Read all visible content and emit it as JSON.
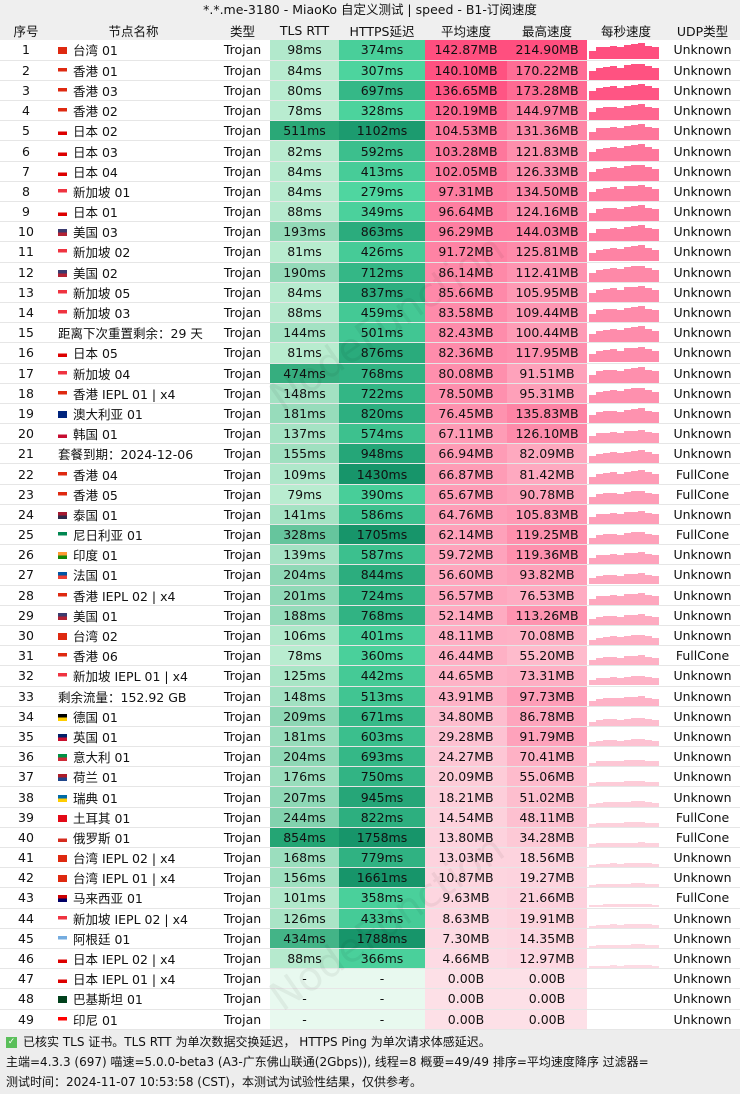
{
  "window": {
    "title": "*.*.me-3180 - MiaoKo 自定义测试 | speed - B1-订阅速度"
  },
  "columns": [
    "序号",
    "节点名称",
    "类型",
    "TLS RTT",
    "HTTPS延迟",
    "平均速度",
    "最高速度",
    "每秒速度",
    "UDP类型"
  ],
  "colors": {
    "tls_low": "#b9ecd0",
    "tls_high": "#24a574",
    "https_low": "#4fd6a0",
    "https_high": "#17956a",
    "speed_high": "#ff4f7f",
    "speed_low": "#fde0e7",
    "empty_latency": "#e8f9ef"
  },
  "rows": [
    [
      1,
      "TW",
      "台湾 01",
      "Trojan",
      "98ms",
      "374ms",
      "142.87MB",
      "214.90MB",
      "Unknown"
    ],
    [
      2,
      "HK",
      "香港 01",
      "Trojan",
      "84ms",
      "307ms",
      "140.10MB",
      "170.22MB",
      "Unknown"
    ],
    [
      3,
      "HK",
      "香港 03",
      "Trojan",
      "80ms",
      "697ms",
      "136.65MB",
      "173.28MB",
      "Unknown"
    ],
    [
      4,
      "HK",
      "香港 02",
      "Trojan",
      "78ms",
      "328ms",
      "120.19MB",
      "144.97MB",
      "Unknown"
    ],
    [
      5,
      "JP",
      "日本 02",
      "Trojan",
      "511ms",
      "1102ms",
      "104.53MB",
      "131.36MB",
      "Unknown"
    ],
    [
      6,
      "JP",
      "日本 03",
      "Trojan",
      "82ms",
      "592ms",
      "103.28MB",
      "121.83MB",
      "Unknown"
    ],
    [
      7,
      "JP",
      "日本 04",
      "Trojan",
      "84ms",
      "413ms",
      "102.05MB",
      "126.33MB",
      "Unknown"
    ],
    [
      8,
      "SG",
      "新加坡 01",
      "Trojan",
      "84ms",
      "279ms",
      "97.31MB",
      "134.50MB",
      "Unknown"
    ],
    [
      9,
      "JP",
      "日本 01",
      "Trojan",
      "88ms",
      "349ms",
      "96.64MB",
      "124.16MB",
      "Unknown"
    ],
    [
      10,
      "US",
      "美国 03",
      "Trojan",
      "193ms",
      "863ms",
      "96.29MB",
      "144.03MB",
      "Unknown"
    ],
    [
      11,
      "SG",
      "新加坡 02",
      "Trojan",
      "81ms",
      "426ms",
      "91.72MB",
      "125.81MB",
      "Unknown"
    ],
    [
      12,
      "US",
      "美国 02",
      "Trojan",
      "190ms",
      "712ms",
      "86.14MB",
      "112.41MB",
      "Unknown"
    ],
    [
      13,
      "SG",
      "新加坡 05",
      "Trojan",
      "84ms",
      "837ms",
      "85.66MB",
      "105.95MB",
      "Unknown"
    ],
    [
      14,
      "SG",
      "新加坡 03",
      "Trojan",
      "88ms",
      "459ms",
      "83.58MB",
      "109.44MB",
      "Unknown"
    ],
    [
      15,
      "",
      "距离下次重置剩余：29 天",
      "Trojan",
      "144ms",
      "501ms",
      "82.43MB",
      "100.44MB",
      "Unknown"
    ],
    [
      16,
      "JP",
      "日本 05",
      "Trojan",
      "81ms",
      "876ms",
      "82.36MB",
      "117.95MB",
      "Unknown"
    ],
    [
      17,
      "SG",
      "新加坡 04",
      "Trojan",
      "474ms",
      "768ms",
      "80.08MB",
      "91.51MB",
      "Unknown"
    ],
    [
      18,
      "HK",
      "香港 IEPL 01 | x4",
      "Trojan",
      "148ms",
      "722ms",
      "78.50MB",
      "95.31MB",
      "Unknown"
    ],
    [
      19,
      "AU",
      "澳大利亚 01",
      "Trojan",
      "181ms",
      "820ms",
      "76.45MB",
      "135.83MB",
      "Unknown"
    ],
    [
      20,
      "KR",
      "韩国 01",
      "Trojan",
      "137ms",
      "574ms",
      "67.11MB",
      "126.10MB",
      "Unknown"
    ],
    [
      21,
      "",
      "套餐到期：2024-12-06",
      "Trojan",
      "155ms",
      "948ms",
      "66.94MB",
      "82.09MB",
      "Unknown"
    ],
    [
      22,
      "HK",
      "香港 04",
      "Trojan",
      "109ms",
      "1430ms",
      "66.87MB",
      "81.42MB",
      "FullCone"
    ],
    [
      23,
      "HK",
      "香港 05",
      "Trojan",
      "79ms",
      "390ms",
      "65.67MB",
      "90.78MB",
      "FullCone"
    ],
    [
      24,
      "TH",
      "泰国 01",
      "Trojan",
      "141ms",
      "586ms",
      "64.76MB",
      "105.83MB",
      "Unknown"
    ],
    [
      25,
      "NG",
      "尼日利亚 01",
      "Trojan",
      "328ms",
      "1705ms",
      "62.14MB",
      "119.25MB",
      "FullCone"
    ],
    [
      26,
      "IN",
      "印度 01",
      "Trojan",
      "139ms",
      "587ms",
      "59.72MB",
      "119.36MB",
      "Unknown"
    ],
    [
      27,
      "FR",
      "法国 01",
      "Trojan",
      "204ms",
      "844ms",
      "56.60MB",
      "93.82MB",
      "Unknown"
    ],
    [
      28,
      "HK",
      "香港 IEPL 02 | x4",
      "Trojan",
      "201ms",
      "724ms",
      "56.57MB",
      "76.53MB",
      "Unknown"
    ],
    [
      29,
      "US",
      "美国 01",
      "Trojan",
      "188ms",
      "768ms",
      "52.14MB",
      "113.26MB",
      "Unknown"
    ],
    [
      30,
      "TW",
      "台湾 02",
      "Trojan",
      "106ms",
      "401ms",
      "48.11MB",
      "70.08MB",
      "Unknown"
    ],
    [
      31,
      "HK",
      "香港 06",
      "Trojan",
      "78ms",
      "360ms",
      "46.44MB",
      "55.20MB",
      "FullCone"
    ],
    [
      32,
      "SG",
      "新加坡 IEPL 01 | x4",
      "Trojan",
      "125ms",
      "442ms",
      "44.65MB",
      "73.31MB",
      "Unknown"
    ],
    [
      33,
      "",
      "剩余流量：152.92 GB",
      "Trojan",
      "148ms",
      "513ms",
      "43.91MB",
      "97.73MB",
      "Unknown"
    ],
    [
      34,
      "DE",
      "德国 01",
      "Trojan",
      "209ms",
      "671ms",
      "34.80MB",
      "86.78MB",
      "Unknown"
    ],
    [
      35,
      "GB",
      "英国 01",
      "Trojan",
      "181ms",
      "603ms",
      "29.28MB",
      "91.79MB",
      "Unknown"
    ],
    [
      36,
      "IT",
      "意大利 01",
      "Trojan",
      "204ms",
      "693ms",
      "24.27MB",
      "70.41MB",
      "Unknown"
    ],
    [
      37,
      "NL",
      "荷兰 01",
      "Trojan",
      "176ms",
      "750ms",
      "20.09MB",
      "55.06MB",
      "Unknown"
    ],
    [
      38,
      "SE",
      "瑞典 01",
      "Trojan",
      "207ms",
      "945ms",
      "18.21MB",
      "51.02MB",
      "Unknown"
    ],
    [
      39,
      "TR",
      "土耳其 01",
      "Trojan",
      "244ms",
      "822ms",
      "14.54MB",
      "48.11MB",
      "FullCone"
    ],
    [
      40,
      "RU",
      "俄罗斯 01",
      "Trojan",
      "854ms",
      "1758ms",
      "13.80MB",
      "34.28MB",
      "FullCone"
    ],
    [
      41,
      "TW",
      "台湾 IEPL 02 | x4",
      "Trojan",
      "168ms",
      "779ms",
      "13.03MB",
      "18.56MB",
      "Unknown"
    ],
    [
      42,
      "TW",
      "台湾 IEPL 01 | x4",
      "Trojan",
      "156ms",
      "1661ms",
      "10.87MB",
      "19.27MB",
      "Unknown"
    ],
    [
      43,
      "MY",
      "马来西亚 01",
      "Trojan",
      "101ms",
      "358ms",
      "9.63MB",
      "21.66MB",
      "FullCone"
    ],
    [
      44,
      "SG",
      "新加坡 IEPL 02 | x4",
      "Trojan",
      "126ms",
      "433ms",
      "8.63MB",
      "19.91MB",
      "Unknown"
    ],
    [
      45,
      "AR",
      "阿根廷 01",
      "Trojan",
      "434ms",
      "1788ms",
      "7.30MB",
      "14.35MB",
      "Unknown"
    ],
    [
      46,
      "JP",
      "日本 IEPL 02 | x4",
      "Trojan",
      "88ms",
      "366ms",
      "4.66MB",
      "12.97MB",
      "Unknown"
    ],
    [
      47,
      "JP",
      "日本 IEPL 01 | x4",
      "Trojan",
      "-",
      "-",
      "0.00B",
      "0.00B",
      "Unknown"
    ],
    [
      48,
      "PK",
      "巴基斯坦 01",
      "Trojan",
      "-",
      "-",
      "0.00B",
      "0.00B",
      "Unknown"
    ],
    [
      49,
      "ID",
      "印尼 01",
      "Trojan",
      "-",
      "-",
      "0.00B",
      "0.00B",
      "Unknown"
    ]
  ],
  "footer": {
    "line1": "已核实 TLS 证书。TLS RTT 为单次数据交换延迟， HTTPS Ping 为单次请求体感延迟。",
    "line2": "主端=4.3.3 (697) 喵速=5.0.0-beta3 (A3-广东佛山联通(2Gbps)), 线程=8 概要=49/49 排序=平均速度降序 过滤器=",
    "line3": "测试时间：2024-11-07 10:53:58 (CST)，本测试为试验性结果，仅供参考。"
  },
  "watermark": "NodeFunction"
}
